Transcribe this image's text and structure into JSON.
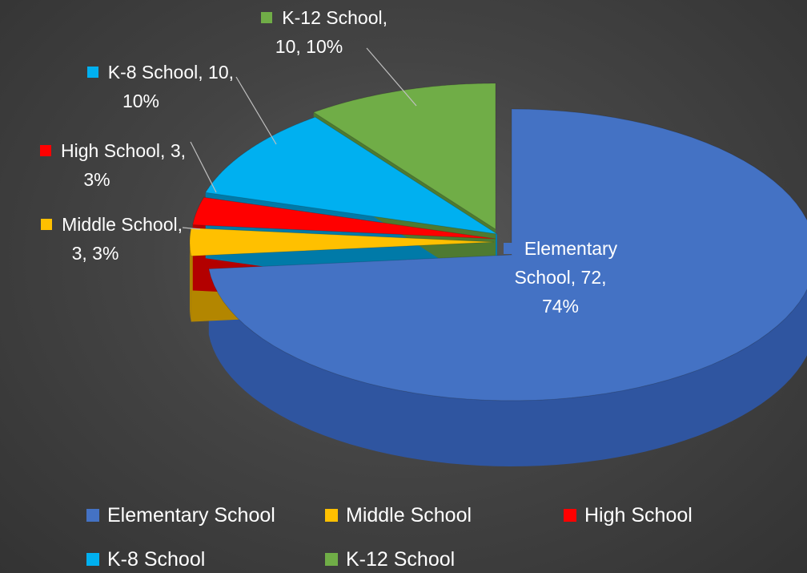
{
  "chart_data": {
    "type": "pie",
    "title": "",
    "legend_position": "bottom",
    "slices": [
      {
        "name": "Elementary School",
        "value": 72,
        "percent": "74%",
        "color": "#4472C4",
        "side_color": "#2F55A0"
      },
      {
        "name": "Middle School",
        "value": 3,
        "percent": "3%",
        "color": "#FFC000",
        "side_color": "#B38600"
      },
      {
        "name": "High School",
        "value": 3,
        "percent": "3%",
        "color": "#FF0000",
        "side_color": "#B30000"
      },
      {
        "name": "K-8 School",
        "value": 10,
        "percent": "10%",
        "color": "#00B0F0",
        "side_color": "#007AA8"
      },
      {
        "name": "K-12 School",
        "value": 10,
        "percent": "10%",
        "color": "#70AD47",
        "side_color": "#4E7A31"
      }
    ],
    "data_labels": [
      {
        "lines": [
          "Elementary",
          "School, 72,",
          "74%"
        ]
      },
      {
        "lines": [
          "Middle School,",
          "3, 3%"
        ]
      },
      {
        "lines": [
          "High School, 3,",
          "3%"
        ]
      },
      {
        "lines": [
          "K-8 School, 10,",
          "10%"
        ]
      },
      {
        "lines": [
          "K-12 School,",
          "10, 10%"
        ]
      }
    ]
  }
}
